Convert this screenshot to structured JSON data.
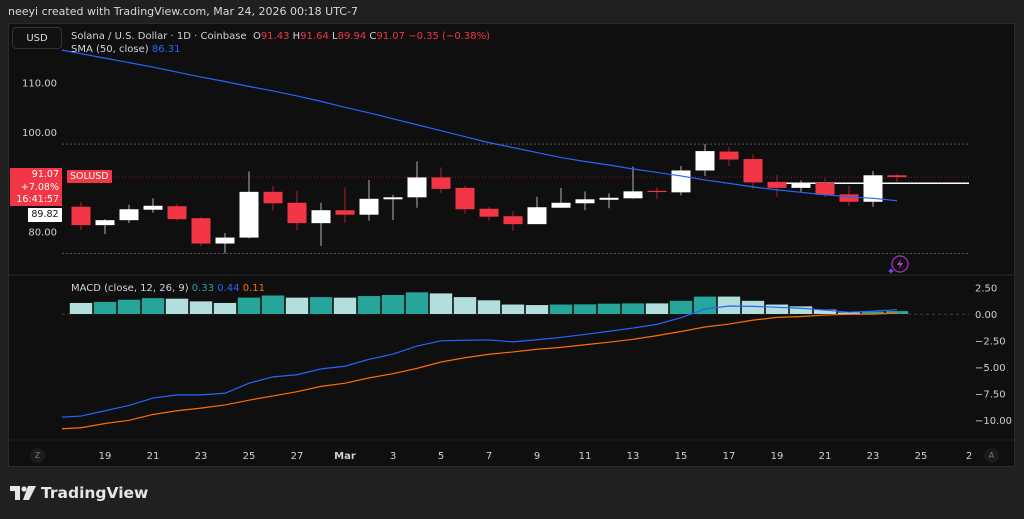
{
  "credit": "neeyi created with TradingView.com, Mar 24, 2026 00:18 UTC-7",
  "currency_button": "USD",
  "legend": {
    "symbol_desc": "Solana / U.S. Dollar · 1D · Coinbase",
    "o_label": "O",
    "o": "91.43",
    "h_label": "H",
    "h": "91.64",
    "l_label": "L",
    "l": "89.94",
    "c_label": "C",
    "c": "91.07",
    "change": "−0.35 (−0.38%)"
  },
  "sma": {
    "label": "SMA (50, close)",
    "value": "86.31"
  },
  "macd": {
    "label": "MACD (close, 12, 26, 9)",
    "hist_value": "0.33",
    "macd_value": "0.44",
    "signal_value": "0.11"
  },
  "price_tag": {
    "price": "91.07",
    "change": "+7.08%",
    "countdown": "16:41:57"
  },
  "symbol_tag": "SOLUSD",
  "prev_price_tag": "89.82",
  "price_axis": [
    "110.00",
    "100.00",
    "80.00"
  ],
  "macd_axis": [
    "2.50",
    "0.00",
    "−2.50",
    "−5.00",
    "−7.50",
    "−10.00"
  ],
  "time_axis": [
    {
      "label": "19",
      "date": "2026-02-19"
    },
    {
      "label": "21",
      "date": "2026-02-21"
    },
    {
      "label": "23",
      "date": "2026-02-23"
    },
    {
      "label": "25",
      "date": "2026-02-25"
    },
    {
      "label": "27",
      "date": "2026-02-27"
    },
    {
      "label": "Mar",
      "date": "2026-03-01"
    },
    {
      "label": "3",
      "date": "2026-03-03"
    },
    {
      "label": "5",
      "date": "2026-03-05"
    },
    {
      "label": "7",
      "date": "2026-03-07"
    },
    {
      "label": "9",
      "date": "2026-03-09"
    },
    {
      "label": "11",
      "date": "2026-03-11"
    },
    {
      "label": "13",
      "date": "2026-03-13"
    },
    {
      "label": "15",
      "date": "2026-03-15"
    },
    {
      "label": "17",
      "date": "2026-03-17"
    },
    {
      "label": "19",
      "date": "2026-03-19"
    },
    {
      "label": "21",
      "date": "2026-03-21"
    },
    {
      "label": "23",
      "date": "2026-03-23"
    },
    {
      "label": "25",
      "date": "2026-03-25"
    },
    {
      "label": "2",
      "date": "2026-03-27"
    }
  ],
  "buttons": {
    "timezone": "Z",
    "auto_scale": "A"
  },
  "brand": "TradingView",
  "colors": {
    "up": "#ffffff",
    "down": "#f23645",
    "sma": "#2962ff",
    "macd": "#2962ff",
    "signal": "#ff6d00",
    "hist_rising": "#26a69a",
    "hist_falling": "#b2dfdb",
    "background": "#0f0f0f"
  },
  "chart_data": {
    "type": "candlestick",
    "price_ylim": [
      72,
      118
    ],
    "macd_ylim": [
      -11.5,
      3.2
    ],
    "candles": [
      {
        "date": "2026-02-18",
        "o": 85.1,
        "h": 86.1,
        "l": 80.4,
        "c": 81.4
      },
      {
        "date": "2026-02-19",
        "o": 81.4,
        "h": 82.6,
        "l": 79.6,
        "c": 82.4
      },
      {
        "date": "2026-02-20",
        "o": 82.4,
        "h": 85.5,
        "l": 81.8,
        "c": 84.6
      },
      {
        "date": "2026-02-21",
        "o": 84.5,
        "h": 86.8,
        "l": 83.9,
        "c": 85.3
      },
      {
        "date": "2026-02-22",
        "o": 85.2,
        "h": 85.7,
        "l": 82.4,
        "c": 82.6
      },
      {
        "date": "2026-02-23",
        "o": 82.8,
        "h": 83.0,
        "l": 77.2,
        "c": 77.7
      },
      {
        "date": "2026-02-24",
        "o": 77.7,
        "h": 79.8,
        "l": 75.7,
        "c": 78.9
      },
      {
        "date": "2026-02-25",
        "o": 78.9,
        "h": 92.2,
        "l": 78.7,
        "c": 88.1
      },
      {
        "date": "2026-02-26",
        "o": 88.1,
        "h": 89.3,
        "l": 84.4,
        "c": 85.8
      },
      {
        "date": "2026-02-27",
        "o": 85.9,
        "h": 88.3,
        "l": 80.4,
        "c": 81.8
      },
      {
        "date": "2026-02-28",
        "o": 81.8,
        "h": 85.9,
        "l": 77.2,
        "c": 84.4
      },
      {
        "date": "2026-03-01",
        "o": 84.4,
        "h": 89.0,
        "l": 81.8,
        "c": 83.5
      },
      {
        "date": "2026-03-02",
        "o": 83.5,
        "h": 90.5,
        "l": 82.3,
        "c": 86.7
      },
      {
        "date": "2026-03-03",
        "o": 86.6,
        "h": 87.5,
        "l": 82.4,
        "c": 87.0
      },
      {
        "date": "2026-03-04",
        "o": 87.0,
        "h": 94.2,
        "l": 84.9,
        "c": 91.0
      },
      {
        "date": "2026-03-05",
        "o": 91.0,
        "h": 93.0,
        "l": 87.9,
        "c": 88.7
      },
      {
        "date": "2026-03-06",
        "o": 88.9,
        "h": 89.3,
        "l": 83.7,
        "c": 84.6
      },
      {
        "date": "2026-03-07",
        "o": 84.7,
        "h": 85.1,
        "l": 82.3,
        "c": 83.1
      },
      {
        "date": "2026-03-08",
        "o": 83.2,
        "h": 84.2,
        "l": 80.3,
        "c": 81.6
      },
      {
        "date": "2026-03-09",
        "o": 81.6,
        "h": 87.1,
        "l": 81.6,
        "c": 85.0
      },
      {
        "date": "2026-03-10",
        "o": 84.9,
        "h": 88.9,
        "l": 84.9,
        "c": 85.9
      },
      {
        "date": "2026-03-11",
        "o": 85.8,
        "h": 88.2,
        "l": 84.4,
        "c": 86.6
      },
      {
        "date": "2026-03-12",
        "o": 86.5,
        "h": 87.8,
        "l": 84.8,
        "c": 86.9
      },
      {
        "date": "2026-03-13",
        "o": 86.8,
        "h": 93.2,
        "l": 86.7,
        "c": 88.2
      },
      {
        "date": "2026-03-14",
        "o": 88.3,
        "h": 89.0,
        "l": 86.6,
        "c": 88.1
      },
      {
        "date": "2026-03-15",
        "o": 88.0,
        "h": 93.3,
        "l": 87.4,
        "c": 92.4
      },
      {
        "date": "2026-03-16",
        "o": 92.4,
        "h": 97.7,
        "l": 91.3,
        "c": 96.3
      },
      {
        "date": "2026-03-17",
        "o": 96.2,
        "h": 97.1,
        "l": 93.3,
        "c": 94.6
      },
      {
        "date": "2026-03-18",
        "o": 94.7,
        "h": 95.7,
        "l": 88.7,
        "c": 90.0
      },
      {
        "date": "2026-03-19",
        "o": 90.1,
        "h": 91.5,
        "l": 87.1,
        "c": 88.9
      },
      {
        "date": "2026-03-20",
        "o": 88.9,
        "h": 90.4,
        "l": 88.1,
        "c": 89.9
      },
      {
        "date": "2026-03-21",
        "o": 89.9,
        "h": 90.8,
        "l": 87.1,
        "c": 87.5
      },
      {
        "date": "2026-03-22",
        "o": 87.6,
        "h": 89.3,
        "l": 85.3,
        "c": 86.1
      },
      {
        "date": "2026-03-23",
        "o": 86.1,
        "h": 92.3,
        "l": 85.1,
        "c": 91.43
      },
      {
        "date": "2026-03-24",
        "o": 91.43,
        "h": 91.64,
        "l": 89.94,
        "c": 91.07
      }
    ],
    "sma50": [
      115.9,
      115.0,
      114.1,
      113.2,
      112.2,
      111.2,
      110.3,
      109.3,
      108.4,
      107.4,
      106.3,
      105.1,
      104.0,
      102.8,
      101.6,
      100.4,
      99.2,
      98.0,
      97.0,
      96.0,
      95.0,
      94.2,
      93.5,
      92.7,
      92.0,
      91.3,
      90.5,
      89.8,
      89.1,
      88.5,
      88.0,
      87.5,
      87.1,
      86.8,
      86.31
    ],
    "macd_line": [
      -9.6,
      -9.1,
      -8.6,
      -7.9,
      -7.6,
      -7.6,
      -7.45,
      -6.5,
      -5.9,
      -5.7,
      -5.15,
      -4.9,
      -4.25,
      -3.75,
      -3.0,
      -2.5,
      -2.45,
      -2.42,
      -2.6,
      -2.4,
      -2.17,
      -1.9,
      -1.6,
      -1.3,
      -0.95,
      -0.32,
      0.5,
      0.78,
      0.75,
      0.66,
      0.57,
      0.4,
      0.2,
      0.3,
      0.44
    ],
    "signal_line": [
      -10.7,
      -10.3,
      -10.0,
      -9.45,
      -9.1,
      -8.85,
      -8.55,
      -8.1,
      -7.7,
      -7.3,
      -6.8,
      -6.5,
      -6.0,
      -5.6,
      -5.1,
      -4.5,
      -4.1,
      -3.77,
      -3.55,
      -3.3,
      -3.12,
      -2.87,
      -2.63,
      -2.36,
      -2.01,
      -1.62,
      -1.2,
      -0.92,
      -0.55,
      -0.29,
      -0.21,
      -0.07,
      0.0,
      0.02,
      0.11
    ],
    "histogram": [
      1.1,
      1.2,
      1.4,
      1.55,
      1.5,
      1.25,
      1.1,
      1.6,
      1.8,
      1.6,
      1.65,
      1.6,
      1.75,
      1.85,
      2.1,
      2.0,
      1.65,
      1.35,
      0.95,
      0.9,
      0.95,
      0.97,
      1.03,
      1.06,
      1.06,
      1.3,
      1.7,
      1.7,
      1.3,
      0.95,
      0.78,
      0.47,
      0.2,
      0.28,
      0.33
    ],
    "last_price": 91.07,
    "prev_price_line": 89.82
  }
}
